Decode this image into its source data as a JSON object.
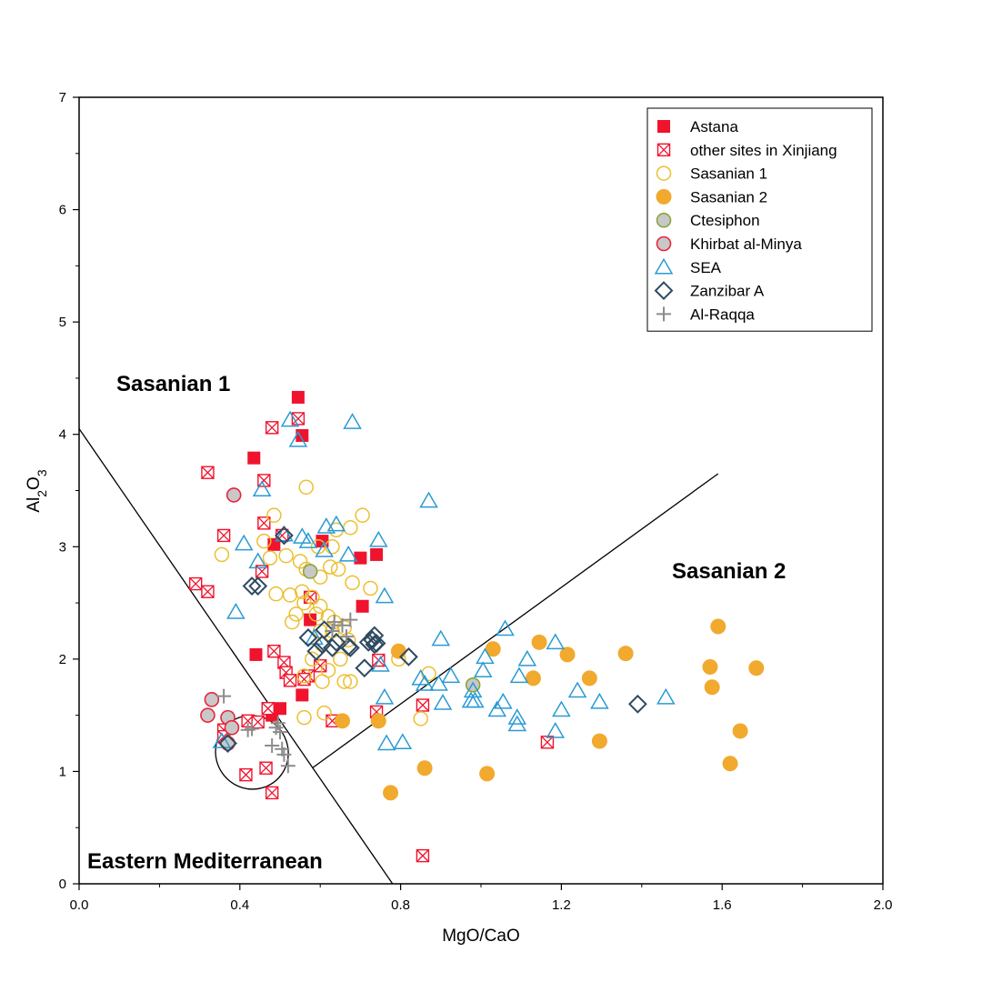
{
  "chart_data": {
    "type": "scatter",
    "xlabel": "MgO/CaO",
    "ylabel": "Al2O3",
    "xlim": [
      0,
      2.0
    ],
    "ylim": [
      0,
      7
    ],
    "x_ticks": [
      "0.0",
      "0.4",
      "0.8",
      "1.2",
      "1.6",
      "2.0"
    ],
    "y_ticks": [
      "0",
      "1",
      "2",
      "3",
      "4",
      "5",
      "6",
      "7"
    ],
    "grid": false,
    "legend_position": "top-right",
    "regions": [
      {
        "name": "Sasanian 1"
      },
      {
        "name": "Sasanian 2"
      },
      {
        "name": "Eastern Mediterranean"
      }
    ],
    "boundary_lines": [
      {
        "from": [
          0.0,
          4.05
        ],
        "to": [
          0.78,
          0.0
        ]
      },
      {
        "from": [
          0.58,
          1.03
        ],
        "to": [
          1.59,
          3.65
        ]
      }
    ],
    "ellipse": {
      "center": [
        0.43,
        1.17
      ],
      "radius_x": 0.09,
      "radius_y": 0.33,
      "angle_deg": -30
    },
    "series": [
      {
        "name": "Astana",
        "marker": "square-filled",
        "color": "#f0132d",
        "points": [
          [
            0.545,
            4.33
          ],
          [
            0.555,
            3.99
          ],
          [
            0.435,
            3.79
          ],
          [
            0.605,
            3.05
          ],
          [
            0.485,
            3.02
          ],
          [
            0.7,
            2.9
          ],
          [
            0.74,
            2.93
          ],
          [
            0.575,
            2.35
          ],
          [
            0.705,
            2.47
          ],
          [
            0.44,
            2.04
          ],
          [
            0.555,
            1.68
          ],
          [
            0.5,
            1.56
          ],
          [
            0.48,
            1.5
          ]
        ]
      },
      {
        "name": "other sites in Xinjiang",
        "marker": "square-x",
        "color": "#f0132d",
        "points": [
          [
            0.48,
            4.06
          ],
          [
            0.545,
            4.14
          ],
          [
            0.32,
            3.66
          ],
          [
            0.46,
            3.59
          ],
          [
            0.46,
            3.21
          ],
          [
            0.36,
            3.1
          ],
          [
            0.505,
            3.1
          ],
          [
            0.455,
            2.78
          ],
          [
            0.29,
            2.67
          ],
          [
            0.32,
            2.6
          ],
          [
            0.575,
            2.55
          ],
          [
            0.485,
            2.07
          ],
          [
            0.51,
            1.97
          ],
          [
            0.515,
            1.88
          ],
          [
            0.525,
            1.81
          ],
          [
            0.6,
            1.94
          ],
          [
            0.57,
            1.85
          ],
          [
            0.56,
            1.82
          ],
          [
            0.745,
            1.99
          ],
          [
            0.74,
            1.53
          ],
          [
            0.855,
            1.59
          ],
          [
            0.63,
            1.45
          ],
          [
            0.42,
            1.45
          ],
          [
            0.445,
            1.44
          ],
          [
            0.47,
            1.56
          ],
          [
            0.36,
            1.37
          ],
          [
            0.36,
            1.31
          ],
          [
            0.415,
            0.97
          ],
          [
            0.465,
            1.03
          ],
          [
            0.48,
            0.81
          ],
          [
            0.855,
            0.25
          ],
          [
            1.165,
            1.26
          ]
        ]
      },
      {
        "name": "Sasanian 1",
        "marker": "circle-open",
        "color": "#ecbf30",
        "points": [
          [
            0.565,
            3.53
          ],
          [
            0.705,
            3.28
          ],
          [
            0.485,
            3.28
          ],
          [
            0.64,
            3.15
          ],
          [
            0.675,
            3.17
          ],
          [
            0.595,
            3.0
          ],
          [
            0.63,
            3.0
          ],
          [
            0.46,
            3.05
          ],
          [
            0.355,
            2.93
          ],
          [
            0.515,
            2.92
          ],
          [
            0.475,
            2.9
          ],
          [
            0.55,
            2.87
          ],
          [
            0.565,
            2.8
          ],
          [
            0.625,
            2.82
          ],
          [
            0.6,
            2.73
          ],
          [
            0.645,
            2.8
          ],
          [
            0.68,
            2.68
          ],
          [
            0.725,
            2.63
          ],
          [
            0.49,
            2.58
          ],
          [
            0.525,
            2.57
          ],
          [
            0.555,
            2.6
          ],
          [
            0.58,
            2.55
          ],
          [
            0.56,
            2.5
          ],
          [
            0.6,
            2.47
          ],
          [
            0.62,
            2.38
          ],
          [
            0.54,
            2.4
          ],
          [
            0.59,
            2.4
          ],
          [
            0.635,
            2.33
          ],
          [
            0.53,
            2.33
          ],
          [
            0.66,
            2.28
          ],
          [
            0.6,
            2.25
          ],
          [
            0.63,
            2.25
          ],
          [
            0.67,
            2.17
          ],
          [
            0.605,
            2.13
          ],
          [
            0.65,
            2.0
          ],
          [
            0.58,
            2.0
          ],
          [
            0.62,
            1.9
          ],
          [
            0.56,
            1.85
          ],
          [
            0.66,
            1.8
          ],
          [
            0.675,
            1.8
          ],
          [
            0.605,
            1.8
          ],
          [
            0.61,
            1.52
          ],
          [
            0.56,
            1.48
          ],
          [
            0.795,
            2.0
          ],
          [
            0.87,
            1.87
          ],
          [
            0.85,
            1.47
          ]
        ]
      },
      {
        "name": "Sasanian 2",
        "marker": "circle-filled",
        "color": "#f1a92e",
        "points": [
          [
            1.59,
            2.29
          ],
          [
            1.57,
            1.93
          ],
          [
            1.685,
            1.92
          ],
          [
            1.575,
            1.75
          ],
          [
            1.645,
            1.36
          ],
          [
            1.62,
            1.07
          ],
          [
            1.36,
            2.05
          ],
          [
            1.215,
            2.04
          ],
          [
            1.145,
            2.15
          ],
          [
            1.27,
            1.83
          ],
          [
            1.13,
            1.83
          ],
          [
            1.03,
            2.09
          ],
          [
            0.795,
            2.07
          ],
          [
            1.295,
            1.27
          ],
          [
            0.86,
            1.03
          ],
          [
            1.015,
            0.98
          ],
          [
            0.775,
            0.81
          ],
          [
            0.745,
            1.45
          ],
          [
            0.655,
            1.45
          ]
        ]
      },
      {
        "name": "Ctesiphon",
        "marker": "circle-gray-olive",
        "color": "#8da43c",
        "points": [
          [
            0.575,
            2.78
          ],
          [
            0.98,
            1.77
          ]
        ]
      },
      {
        "name": "Khirbat al-Minya",
        "marker": "circle-gray-red",
        "color": "#e8253c",
        "points": [
          [
            0.385,
            3.46
          ],
          [
            0.33,
            1.64
          ],
          [
            0.32,
            1.5
          ],
          [
            0.37,
            1.48
          ],
          [
            0.38,
            1.39
          ],
          [
            0.37,
            1.25
          ]
        ]
      },
      {
        "name": "SEA",
        "marker": "triangle-open",
        "color": "#2a9bd3",
        "points": [
          [
            0.525,
            4.13
          ],
          [
            0.545,
            3.95
          ],
          [
            0.68,
            4.11
          ],
          [
            0.87,
            3.41
          ],
          [
            0.455,
            3.51
          ],
          [
            0.64,
            3.2
          ],
          [
            0.615,
            3.18
          ],
          [
            0.51,
            3.11
          ],
          [
            0.555,
            3.09
          ],
          [
            0.57,
            3.05
          ],
          [
            0.61,
            2.97
          ],
          [
            0.67,
            2.93
          ],
          [
            0.745,
            3.06
          ],
          [
            0.41,
            3.03
          ],
          [
            0.445,
            2.87
          ],
          [
            0.39,
            2.42
          ],
          [
            0.76,
            2.56
          ],
          [
            0.9,
            2.18
          ],
          [
            0.585,
            2.19
          ],
          [
            0.75,
            1.95
          ],
          [
            0.85,
            1.83
          ],
          [
            0.925,
            1.85
          ],
          [
            0.86,
            1.78
          ],
          [
            0.895,
            1.78
          ],
          [
            1.06,
            2.27
          ],
          [
            1.115,
            2.0
          ],
          [
            1.185,
            2.15
          ],
          [
            1.01,
            2.02
          ],
          [
            1.005,
            1.9
          ],
          [
            1.095,
            1.85
          ],
          [
            1.24,
            1.72
          ],
          [
            0.98,
            1.72
          ],
          [
            0.975,
            1.63
          ],
          [
            0.985,
            1.63
          ],
          [
            1.055,
            1.62
          ],
          [
            1.04,
            1.55
          ],
          [
            0.905,
            1.61
          ],
          [
            1.295,
            1.62
          ],
          [
            1.2,
            1.55
          ],
          [
            1.09,
            1.48
          ],
          [
            1.09,
            1.42
          ],
          [
            1.185,
            1.36
          ],
          [
            1.46,
            1.66
          ],
          [
            0.76,
            1.66
          ],
          [
            0.805,
            1.26
          ],
          [
            0.765,
            1.25
          ],
          [
            0.355,
            1.27
          ]
        ]
      },
      {
        "name": "Zanzibar A",
        "marker": "diamond-open",
        "color": "#2e4a61",
        "points": [
          [
            0.51,
            3.1
          ],
          [
            0.43,
            2.65
          ],
          [
            0.445,
            2.65
          ],
          [
            0.57,
            2.19
          ],
          [
            0.61,
            2.26
          ],
          [
            0.64,
            2.15
          ],
          [
            0.605,
            2.13
          ],
          [
            0.59,
            2.07
          ],
          [
            0.63,
            2.1
          ],
          [
            0.67,
            2.11
          ],
          [
            0.675,
            2.1
          ],
          [
            0.735,
            2.21
          ],
          [
            0.73,
            2.17
          ],
          [
            0.735,
            2.13
          ],
          [
            0.72,
            2.15
          ],
          [
            0.74,
            2.14
          ],
          [
            0.82,
            2.02
          ],
          [
            0.71,
            1.92
          ],
          [
            0.37,
            1.25
          ],
          [
            1.39,
            1.6
          ]
        ]
      },
      {
        "name": "Al-Raqqa",
        "marker": "plus",
        "color": "#8c8c8c",
        "points": [
          [
            0.36,
            1.67
          ],
          [
            0.635,
            2.33
          ],
          [
            0.675,
            2.35
          ],
          [
            0.655,
            2.3
          ],
          [
            0.63,
            2.25
          ],
          [
            0.665,
            2.2
          ],
          [
            0.43,
            1.38
          ],
          [
            0.42,
            1.37
          ],
          [
            0.495,
            1.43
          ],
          [
            0.49,
            1.39
          ],
          [
            0.5,
            1.35
          ],
          [
            0.48,
            1.23
          ],
          [
            0.505,
            1.2
          ],
          [
            0.51,
            1.15
          ],
          [
            0.52,
            1.05
          ]
        ]
      }
    ]
  }
}
